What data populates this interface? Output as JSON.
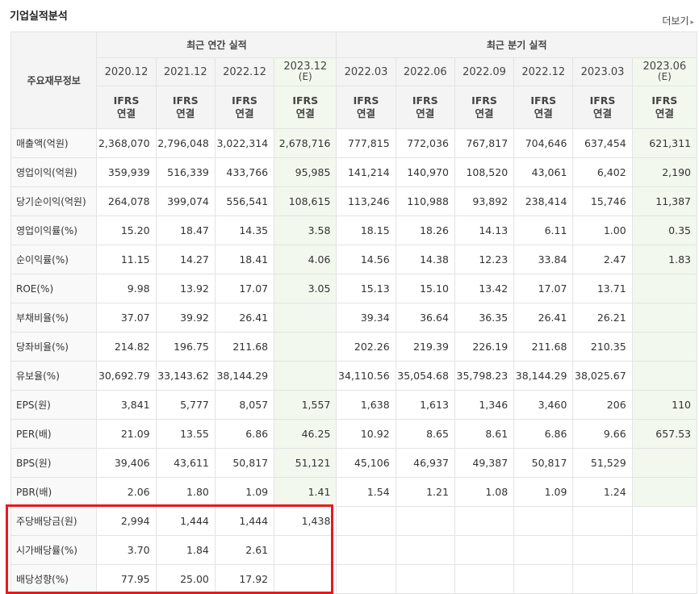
{
  "header": {
    "title": "기업실적분석",
    "more_label": "더보기",
    "more_arrow": "▸"
  },
  "table": {
    "row_header_label": "주요재무정보",
    "groups": {
      "annual": "최근 연간 실적",
      "quarterly": "최근 분기 실적"
    },
    "periods": [
      {
        "label": "2020.12",
        "est": ""
      },
      {
        "label": "2021.12",
        "est": ""
      },
      {
        "label": "2022.12",
        "est": ""
      },
      {
        "label": "2023.12",
        "est": "(E)"
      },
      {
        "label": "2022.03",
        "est": ""
      },
      {
        "label": "2022.06",
        "est": ""
      },
      {
        "label": "2022.09",
        "est": ""
      },
      {
        "label": "2022.12",
        "est": ""
      },
      {
        "label": "2023.03",
        "est": ""
      },
      {
        "label": "2023.06",
        "est": "(E)"
      }
    ],
    "ifrs": {
      "line1": "IFRS",
      "line2": "연결"
    },
    "rows": [
      {
        "label": "매출액(억원)",
        "values": [
          "2,368,070",
          "2,796,048",
          "3,022,314",
          "2,678,716",
          "777,815",
          "772,036",
          "767,817",
          "704,646",
          "637,454",
          "621,311"
        ]
      },
      {
        "label": "영업이익(억원)",
        "values": [
          "359,939",
          "516,339",
          "433,766",
          "95,985",
          "141,214",
          "140,970",
          "108,520",
          "43,061",
          "6,402",
          "2,190"
        ]
      },
      {
        "label": "당기순이익(억원)",
        "values": [
          "264,078",
          "399,074",
          "556,541",
          "108,615",
          "113,246",
          "110,988",
          "93,892",
          "238,414",
          "15,746",
          "11,387"
        ]
      },
      {
        "label": "영업이익률(%)",
        "values": [
          "15.20",
          "18.47",
          "14.35",
          "3.58",
          "18.15",
          "18.26",
          "14.13",
          "6.11",
          "1.00",
          "0.35"
        ]
      },
      {
        "label": "순이익률(%)",
        "values": [
          "11.15",
          "14.27",
          "18.41",
          "4.06",
          "14.56",
          "14.38",
          "12.23",
          "33.84",
          "2.47",
          "1.83"
        ]
      },
      {
        "label": "ROE(%)",
        "values": [
          "9.98",
          "13.92",
          "17.07",
          "3.05",
          "15.13",
          "15.10",
          "13.42",
          "17.07",
          "13.71",
          ""
        ]
      },
      {
        "label": "부채비율(%)",
        "values": [
          "37.07",
          "39.92",
          "26.41",
          "",
          "39.34",
          "36.64",
          "36.35",
          "26.41",
          "26.21",
          ""
        ]
      },
      {
        "label": "당좌비율(%)",
        "values": [
          "214.82",
          "196.75",
          "211.68",
          "",
          "202.26",
          "219.39",
          "226.19",
          "211.68",
          "210.35",
          ""
        ]
      },
      {
        "label": "유보율(%)",
        "values": [
          "30,692.79",
          "33,143.62",
          "38,144.29",
          "",
          "34,110.56",
          "35,054.68",
          "35,798.23",
          "38,144.29",
          "38,025.67",
          ""
        ]
      },
      {
        "label": "EPS(원)",
        "values": [
          "3,841",
          "5,777",
          "8,057",
          "1,557",
          "1,638",
          "1,613",
          "1,346",
          "3,460",
          "206",
          "110"
        ]
      },
      {
        "label": "PER(배)",
        "values": [
          "21.09",
          "13.55",
          "6.86",
          "46.25",
          "10.92",
          "8.65",
          "8.61",
          "6.86",
          "9.66",
          "657.53"
        ]
      },
      {
        "label": "BPS(원)",
        "values": [
          "39,406",
          "43,611",
          "50,817",
          "51,121",
          "45,106",
          "46,937",
          "49,387",
          "50,817",
          "51,529",
          ""
        ]
      },
      {
        "label": "PBR(배)",
        "values": [
          "2.06",
          "1.80",
          "1.09",
          "1.41",
          "1.54",
          "1.21",
          "1.08",
          "1.09",
          "1.24",
          ""
        ]
      },
      {
        "label": "주당배당금(원)",
        "values": [
          "2,994",
          "1,444",
          "1,444",
          "1,438",
          "",
          "",
          "",
          "",
          "",
          ""
        ]
      },
      {
        "label": "시가배당률(%)",
        "values": [
          "3.70",
          "1.84",
          "2.61",
          "",
          "",
          "",
          "",
          "",
          "",
          ""
        ]
      },
      {
        "label": "배당성향(%)",
        "values": [
          "77.95",
          "25.00",
          "17.92",
          "",
          "",
          "",
          "",
          "",
          "",
          ""
        ]
      }
    ]
  },
  "colors": {
    "highlight_border": "#e8191f",
    "ifrs_text": "#e25b1d",
    "estimate_bg": "#f2f8ee"
  }
}
